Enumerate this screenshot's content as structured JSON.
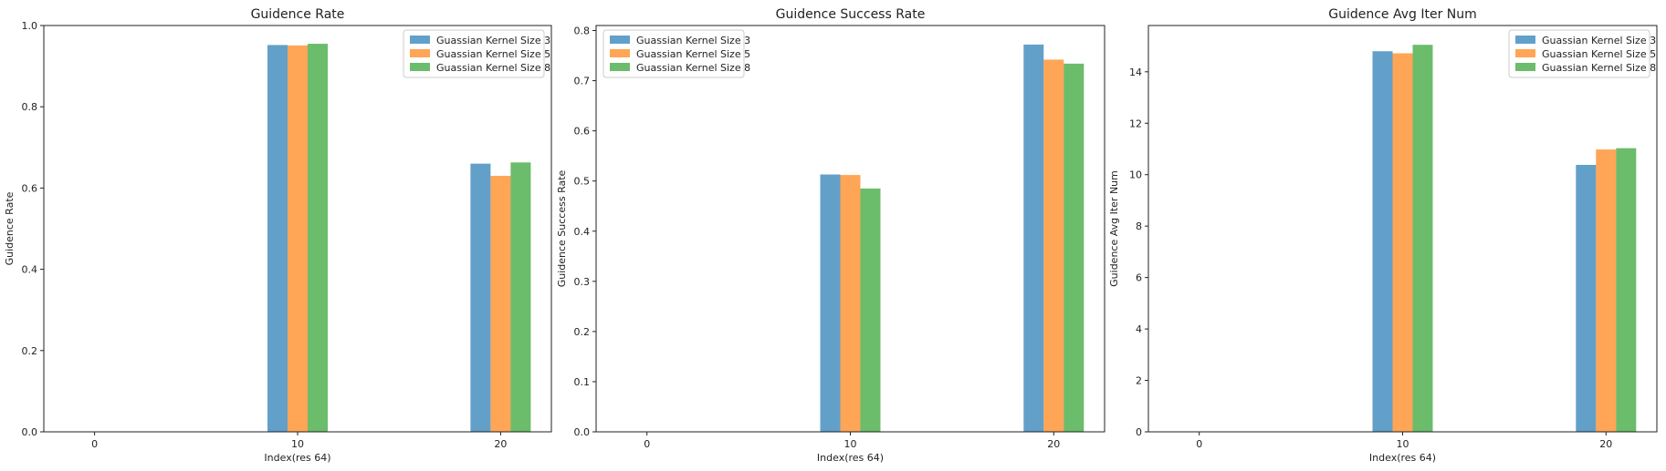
{
  "chart_data": [
    {
      "type": "bar",
      "title": "Guidence Rate",
      "xlabel": "Index(res 64)",
      "ylabel": "Guidence Rate",
      "x_ticks": [
        0,
        10,
        20
      ],
      "groups_x": [
        10,
        20
      ],
      "xlim": [
        -2.5,
        22.5
      ],
      "ylim": [
        0,
        1.0
      ],
      "y_ticks": [
        0.0,
        0.2,
        0.4,
        0.6,
        0.8,
        1.0
      ],
      "y_tick_labels": [
        "0.0",
        "0.2",
        "0.4",
        "0.6",
        "0.8",
        "1.0"
      ],
      "legend_position": "top-right",
      "series": [
        {
          "name": "Guassian Kernel Size 3",
          "values": [
            0.952,
            0.66
          ]
        },
        {
          "name": "Guassian Kernel Size 5",
          "values": [
            0.951,
            0.63
          ]
        },
        {
          "name": "Guassian Kernel Size 8",
          "values": [
            0.955,
            0.663
          ]
        }
      ]
    },
    {
      "type": "bar",
      "title": "Guidence Success Rate",
      "xlabel": "Index(res 64)",
      "ylabel": "Guidence Success Rate",
      "x_ticks": [
        0,
        10,
        20
      ],
      "groups_x": [
        10,
        20
      ],
      "xlim": [
        -2.5,
        22.5
      ],
      "ylim": [
        0,
        0.81
      ],
      "y_ticks": [
        0.0,
        0.1,
        0.2,
        0.3,
        0.4,
        0.5,
        0.6,
        0.7,
        0.8
      ],
      "y_tick_labels": [
        "0.0",
        "0.1",
        "0.2",
        "0.3",
        "0.4",
        "0.5",
        "0.6",
        "0.7",
        "0.8"
      ],
      "legend_position": "top-left",
      "series": [
        {
          "name": "Guassian Kernel Size 3",
          "values": [
            0.513,
            0.772
          ]
        },
        {
          "name": "Guassian Kernel Size 5",
          "values": [
            0.512,
            0.742
          ]
        },
        {
          "name": "Guassian Kernel Size 8",
          "values": [
            0.485,
            0.734
          ]
        }
      ]
    },
    {
      "type": "bar",
      "title": "Guidence Avg Iter Num",
      "xlabel": "Index(res 64)",
      "ylabel": "Guidence Avg Iter Num",
      "x_ticks": [
        0,
        10,
        20
      ],
      "groups_x": [
        10,
        20
      ],
      "xlim": [
        -2.5,
        22.5
      ],
      "ylim": [
        0,
        15.8
      ],
      "y_ticks": [
        0,
        2,
        4,
        6,
        8,
        10,
        12,
        14
      ],
      "y_tick_labels": [
        "0",
        "2",
        "4",
        "6",
        "8",
        "10",
        "12",
        "14"
      ],
      "legend_position": "top-right",
      "series": [
        {
          "name": "Guassian Kernel Size 3",
          "values": [
            14.8,
            10.38
          ]
        },
        {
          "name": "Guassian Kernel Size 5",
          "values": [
            14.72,
            10.98
          ]
        },
        {
          "name": "Guassian Kernel Size 8",
          "values": [
            15.05,
            11.03
          ]
        }
      ]
    }
  ],
  "colors": [
    "#1f77b4",
    "#ff7f0e",
    "#2ca02c"
  ]
}
